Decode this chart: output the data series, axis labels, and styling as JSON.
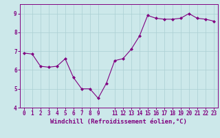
{
  "x": [
    0,
    1,
    2,
    3,
    4,
    5,
    6,
    7,
    8,
    9,
    10,
    11,
    12,
    13,
    14,
    15,
    16,
    17,
    18,
    19,
    20,
    21,
    22,
    23
  ],
  "y": [
    6.9,
    6.85,
    6.2,
    6.15,
    6.2,
    6.6,
    5.6,
    5.0,
    5.0,
    4.5,
    5.3,
    6.5,
    6.6,
    7.1,
    7.8,
    8.9,
    8.75,
    8.7,
    8.7,
    8.75,
    9.0,
    8.75,
    8.7,
    8.6
  ],
  "line_color": "#800080",
  "marker": "D",
  "marker_size": 2.0,
  "bg_color": "#cce8ea",
  "grid_color": "#aacfd2",
  "spine_color": "#800080",
  "xlabel": "Windchill (Refroidissement éolien,°C)",
  "xlim": [
    -0.5,
    23.5
  ],
  "ylim": [
    4,
    9.5
  ],
  "yticks": [
    4,
    5,
    6,
    7,
    8,
    9
  ],
  "xticks": [
    0,
    1,
    2,
    3,
    4,
    5,
    6,
    7,
    8,
    9,
    11,
    12,
    13,
    14,
    15,
    16,
    17,
    18,
    19,
    20,
    21,
    22,
    23
  ],
  "tick_color": "#800080",
  "tick_fontsize": 5.5,
  "xlabel_fontsize": 6.5,
  "linewidth": 0.8
}
